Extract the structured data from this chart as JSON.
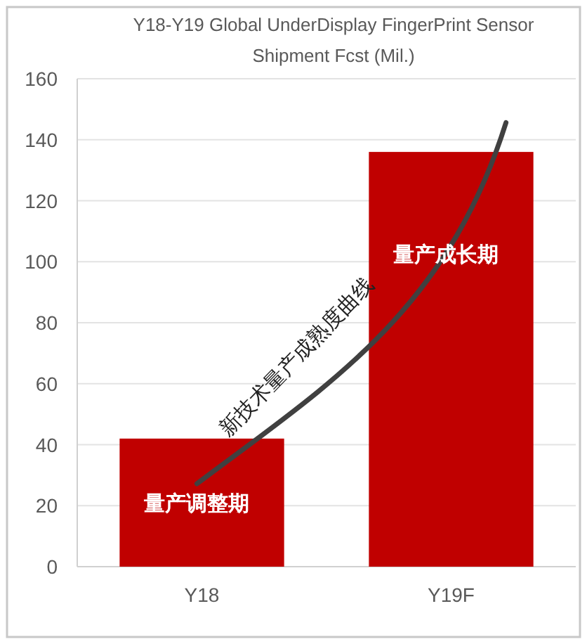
{
  "chart_data": {
    "type": "bar",
    "title": "Y18-Y19 Global UnderDisplay FingerPrint Sensor Shipment Fcst (Mil.)",
    "categories": [
      "Y18",
      "Y19F"
    ],
    "values": [
      42,
      136
    ],
    "color": "#c00000",
    "ylim": [
      0,
      160
    ],
    "yticks": [
      0,
      20,
      40,
      60,
      80,
      100,
      120,
      140,
      160
    ],
    "grid": "y",
    "annotations": [
      "量产调整期",
      "量产成长期",
      "新技术量产成熟度曲线"
    ]
  }
}
